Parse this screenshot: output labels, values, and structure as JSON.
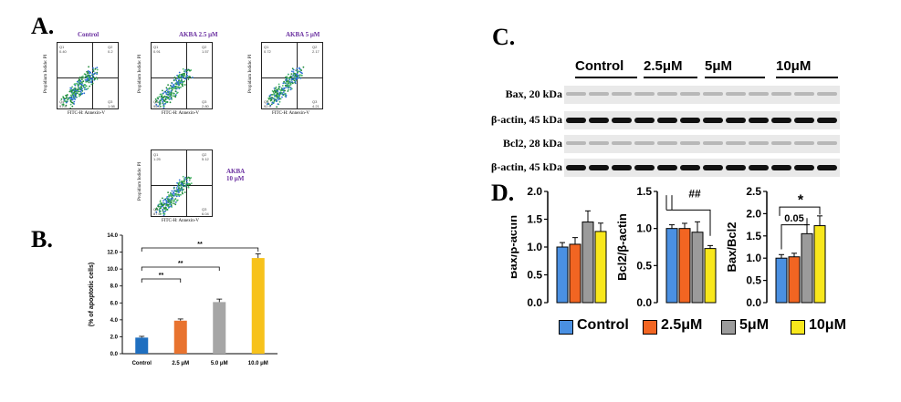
{
  "panels": {
    "a": "A.",
    "b": "B.",
    "c": "C.",
    "d": "D."
  },
  "flow": {
    "x_label": "FITC-H: Annexin-V",
    "y_label": "Propidium Iodide: PI",
    "plots": [
      {
        "title": "Control",
        "q": [
          "Q1",
          "0.40",
          "Q2",
          "0.2",
          "Q4",
          "97.4",
          "Q3",
          "1.98"
        ]
      },
      {
        "title": "AKBA 2.5 μM",
        "q": [
          "Q1",
          "0.91",
          "Q2",
          "1.57",
          "Q4",
          "95.3",
          "Q3",
          "2.80"
        ]
      },
      {
        "title": "AKBA 5 μM",
        "q": [
          "Q1",
          "0.72",
          "Q2",
          "2.17",
          "Q4",
          "92.9",
          "Q3",
          "4.21"
        ]
      },
      {
        "title": "AKBA 10 μM",
        "q": [
          "Q1",
          "1.25",
          "Q2",
          "5.12",
          "Q4",
          "87.6",
          "Q3",
          "6.04"
        ]
      }
    ]
  },
  "chart_data": [
    {
      "type": "bar",
      "panel": "B",
      "categories": [
        "Control",
        "2.5 μM",
        "5.0 μM",
        "10.0 μM"
      ],
      "values": [
        1.9,
        3.9,
        6.1,
        11.3
      ],
      "errors": [
        0.15,
        0.2,
        0.35,
        0.5
      ],
      "colors": [
        "#1f6fc0",
        "#e8732f",
        "#a6a6a6",
        "#f7c21b"
      ],
      "ylabel": "(% of apoptotic cells)",
      "ylim": [
        0,
        14
      ],
      "yticks": [
        "0.0",
        "2.0",
        "4.0",
        "6.0",
        "8.0",
        "10.0",
        "12.0",
        "14.0"
      ],
      "annotations": [
        "**",
        "**",
        "**"
      ]
    },
    {
      "type": "bar",
      "panel": "D",
      "ylabel": "Bax/β-actin",
      "ylim": [
        0,
        2.0
      ],
      "yticks": [
        "0.0",
        "0.5",
        "1.0",
        "1.5",
        "2.0"
      ],
      "categories": [
        "Control",
        "2.5μM",
        "5μM",
        "10μM"
      ],
      "values": [
        1.0,
        1.05,
        1.45,
        1.28
      ],
      "errors": [
        0.08,
        0.12,
        0.2,
        0.15
      ],
      "annotations": []
    },
    {
      "type": "bar",
      "panel": "D",
      "ylabel": "Bcl2/β-actin",
      "ylim": [
        0,
        1.5
      ],
      "yticks": [
        "0.0",
        "0.5",
        "1.0",
        "1.5"
      ],
      "categories": [
        "Control",
        "2.5μM",
        "5μM",
        "10μM"
      ],
      "values": [
        1.0,
        1.0,
        0.95,
        0.73
      ],
      "errors": [
        0.05,
        0.07,
        0.14,
        0.04
      ],
      "annotations": [
        "##"
      ]
    },
    {
      "type": "bar",
      "panel": "D",
      "ylabel": "Bax/Bcl2",
      "ylim": [
        0,
        2.5
      ],
      "yticks": [
        "0.0",
        "0.5",
        "1.0",
        "1.5",
        "2.0",
        "2.5"
      ],
      "categories": [
        "Control",
        "2.5μM",
        "5μM",
        "10μM"
      ],
      "values": [
        1.0,
        1.03,
        1.55,
        1.73
      ],
      "errors": [
        0.08,
        0.08,
        0.2,
        0.22
      ],
      "annotations": [
        "*",
        "0.05"
      ]
    }
  ],
  "blot": {
    "groups": [
      "Control",
      "2.5μM",
      "5μM",
      "10μM"
    ],
    "rows": [
      "Bax, 20 kDa",
      "β-actin, 45 kDa",
      "Bcl2, 28 kDa",
      "β-actin, 45 kDa"
    ]
  },
  "legend": {
    "items": [
      {
        "label": "Control",
        "color": "#4a90e2"
      },
      {
        "label": "2.5μM",
        "color": "#f26522"
      },
      {
        "label": "5μM",
        "color": "#9b9b9b"
      },
      {
        "label": "10μM",
        "color": "#f8e71c"
      }
    ]
  }
}
